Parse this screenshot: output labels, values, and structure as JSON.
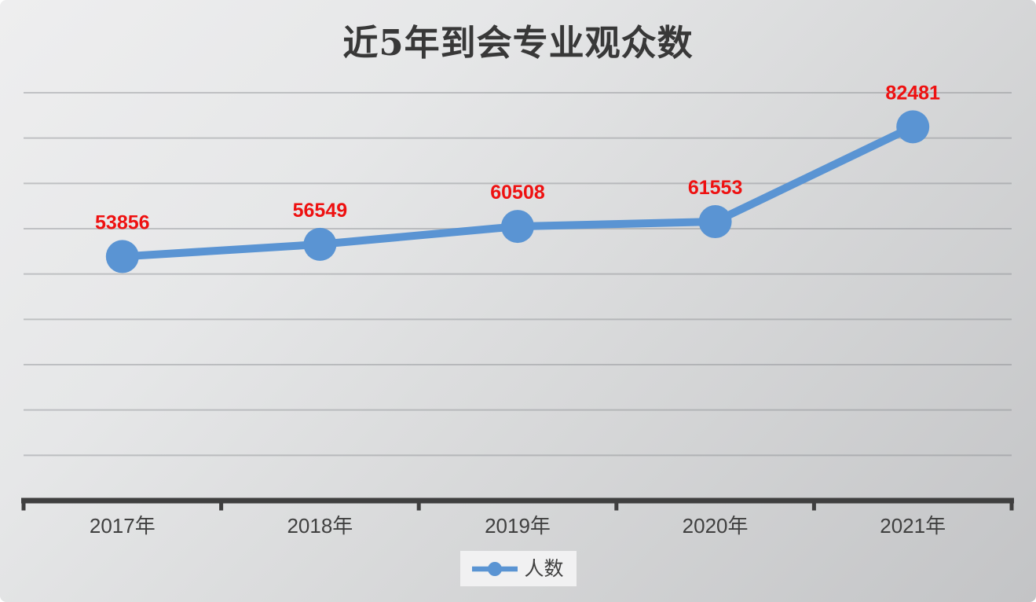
{
  "chart": {
    "title": "近5年到会专业观众数",
    "legend": {
      "label": "人数"
    },
    "colors": {
      "line": "#5a94d3",
      "marker": "#5a94d3",
      "data_label": "#ee1111",
      "axis": "#3f3f3f",
      "tick_label": "#3f3f3f",
      "gridline": "rgba(128,130,134,0.4)",
      "legend_bg": "#f1f1f2"
    }
  },
  "chart_data": {
    "type": "line",
    "title": "近5年到会专业观众数",
    "categories": [
      "2017年",
      "2018年",
      "2019年",
      "2020年",
      "2021年"
    ],
    "series": [
      {
        "name": "人数",
        "values": [
          53856,
          56549,
          60508,
          61553,
          82481
        ]
      }
    ],
    "data_labels": [
      "53856",
      "56549",
      "60508",
      "61553",
      "82481"
    ],
    "xlabel": "",
    "ylabel": "",
    "ylim": [
      0,
      90000
    ],
    "grid": true,
    "grid_step": 10000,
    "legend_position": "bottom",
    "marker": "circle",
    "line_color": "#5a94d3",
    "label_color": "#ee1111"
  }
}
